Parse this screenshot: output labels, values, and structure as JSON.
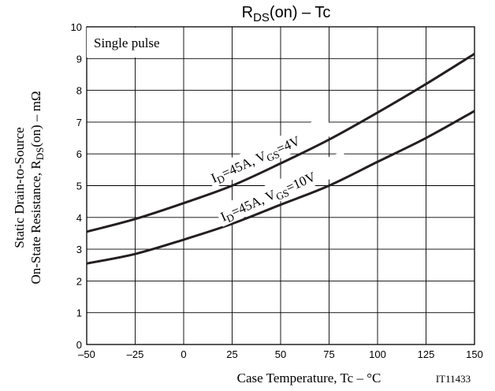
{
  "chart_data": {
    "type": "line",
    "title_main": "R",
    "title_sub": "DS",
    "title_rest": "(on)  –  Tc",
    "xlabel": "Case Temperature, Tc  –  °C",
    "ylabel_line1": "Static Drain-to-Source",
    "ylabel_line2_pre": "On-State Resistance, R",
    "ylabel_line2_sub": "DS",
    "ylabel_line2_post": "(on)  –  mΩ",
    "xlim": [
      -50,
      150
    ],
    "ylim": [
      0,
      10
    ],
    "x_ticks": [
      "–50",
      "–25",
      "0",
      "25",
      "50",
      "75",
      "100",
      "125",
      "150"
    ],
    "x_tick_values": [
      -50,
      -25,
      0,
      25,
      50,
      75,
      100,
      125,
      150
    ],
    "y_ticks": [
      "0",
      "1",
      "2",
      "3",
      "4",
      "5",
      "6",
      "7",
      "8",
      "9",
      "10"
    ],
    "y_tick_values": [
      0,
      1,
      2,
      3,
      4,
      5,
      6,
      7,
      8,
      9,
      10
    ],
    "grid": true,
    "annotation_box": "Single pulse",
    "figure_id": "IT11433",
    "series": [
      {
        "label_pre": "I",
        "label_sub1": "D",
        "label_mid": "=45A, V",
        "label_sub2": "GS",
        "label_post": "=4V",
        "x": [
          -50,
          -25,
          0,
          25,
          50,
          75,
          100,
          125,
          150
        ],
        "y": [
          3.55,
          3.95,
          4.45,
          5.0,
          5.7,
          6.45,
          7.3,
          8.2,
          9.15
        ]
      },
      {
        "label_pre": "I",
        "label_sub1": "D",
        "label_mid": "=45A, V",
        "label_sub2": "GS",
        "label_post": "=10V",
        "x": [
          -50,
          -25,
          0,
          25,
          50,
          75,
          100,
          125,
          150
        ],
        "y": [
          2.55,
          2.85,
          3.3,
          3.8,
          4.4,
          5.0,
          5.75,
          6.5,
          7.35
        ]
      }
    ]
  }
}
